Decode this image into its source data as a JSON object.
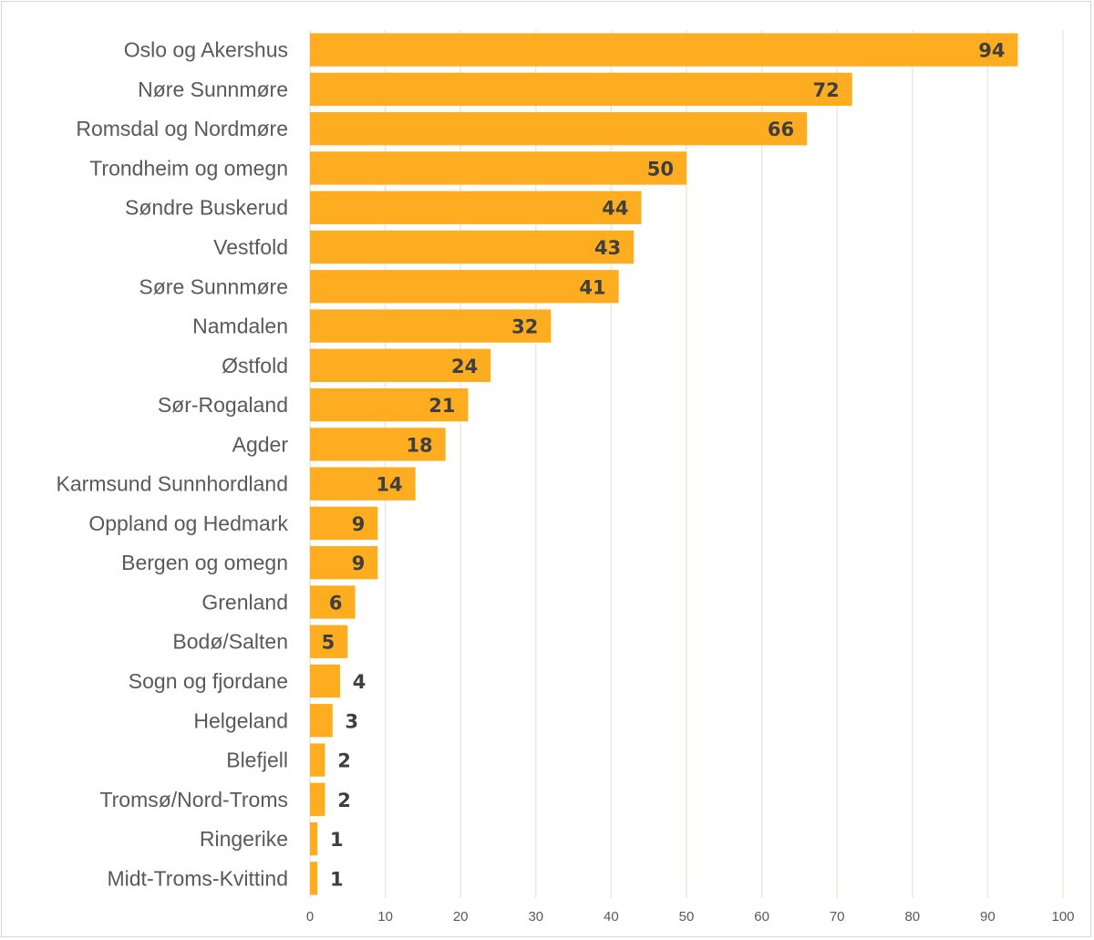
{
  "chart_data": {
    "type": "bar",
    "orientation": "horizontal",
    "categories": [
      "Oslo og Akershus",
      "Nøre Sunnmøre",
      "Romsdal og Nordmøre",
      "Trondheim og omegn",
      "Søndre Buskerud",
      "Vestfold",
      "Søre Sunnmøre",
      "Namdalen",
      "Østfold",
      "Sør-Rogaland",
      "Agder",
      "Karmsund Sunnhordland",
      "Oppland og Hedmark",
      "Bergen og omegn",
      "Grenland",
      "Bodø/Salten",
      "Sogn og fjordane",
      "Helgeland",
      "Blefjell",
      "Tromsø/Nord-Troms",
      "Ringerike",
      "Midt-Troms-Kvittind"
    ],
    "values": [
      94,
      72,
      66,
      50,
      44,
      43,
      41,
      32,
      24,
      21,
      18,
      14,
      9,
      9,
      6,
      5,
      4,
      3,
      2,
      2,
      1,
      1
    ],
    "xlim": [
      0,
      100
    ],
    "xticks": [
      0,
      10,
      20,
      30,
      40,
      50,
      60,
      70,
      80,
      90,
      100
    ],
    "grid": true,
    "data_labels": true,
    "bar_color": "#FDAD1F",
    "grid_color": "#E8E6D5",
    "label_color": "#595959",
    "value_label_color": "#3F3F3F"
  }
}
